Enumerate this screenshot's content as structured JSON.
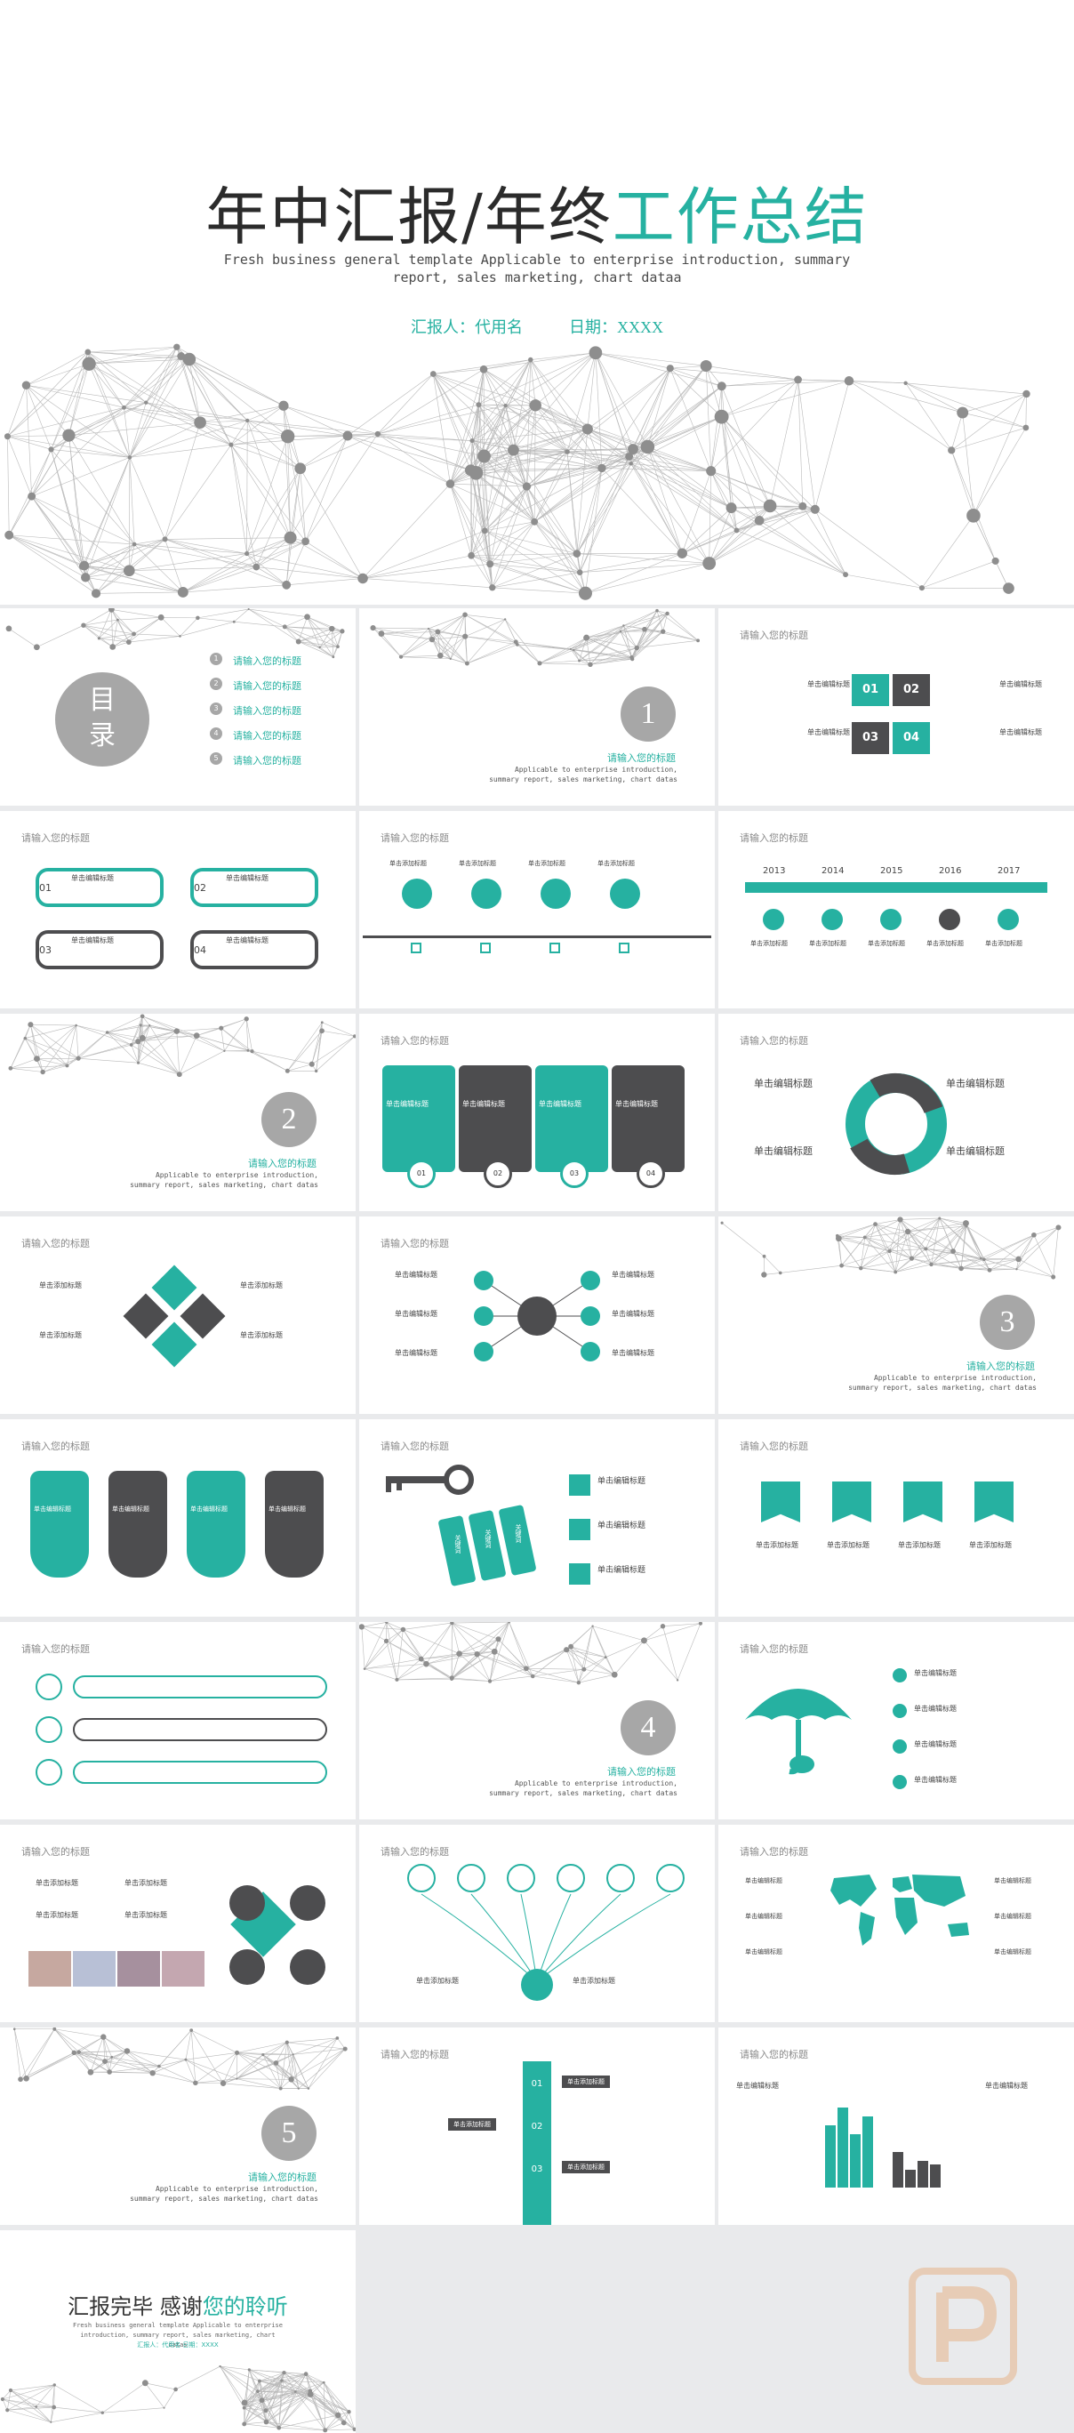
{
  "cover": {
    "title_main": "年中汇报/年终",
    "title_accent": "工作总结",
    "subtitle": "Fresh business general template Applicable to enterprise introduction, summary report, sales marketing, chart dataa",
    "reporter": "汇报人：代用名",
    "date": "日期：XXXX"
  },
  "placeholder": "请输入您的标题",
  "toc": {
    "title": "目录",
    "items": [
      "请输入您的标题",
      "请输入您的标题",
      "请输入您的标题",
      "请输入您的标题",
      "请输入您的标题"
    ],
    "nums": [
      "1",
      "2",
      "3",
      "4",
      "5"
    ]
  },
  "section": {
    "desc": "Applicable to enterprise introduction, summary report, sales marketing, chart datas",
    "nums": [
      "1",
      "2",
      "3",
      "4",
      "5"
    ]
  },
  "labels": {
    "edit_title": "单击编辑标题",
    "add_title": "单击添加标题",
    "click_edit": "单击编辑标题"
  },
  "numbers": [
    "01",
    "02",
    "03",
    "04"
  ],
  "years": [
    "2013",
    "2014",
    "2015",
    "2016",
    "2017"
  ],
  "cycle": [
    "关键词",
    "关键词",
    "关键词",
    "关键词"
  ],
  "tags": [
    "关键词",
    "关键词",
    "关键词"
  ],
  "end": {
    "title": "汇报完毕 感谢",
    "accent": "您的聆听",
    "subtitle": "Fresh business general template Applicable to enterprise introduction, summary report, sales marketing, chart datas",
    "meta": "汇报人：代用名     日期：XXXX"
  },
  "colors": {
    "teal": "#26b1a1",
    "dark": "#4d4d4f",
    "grey": "#a7a7a7"
  }
}
